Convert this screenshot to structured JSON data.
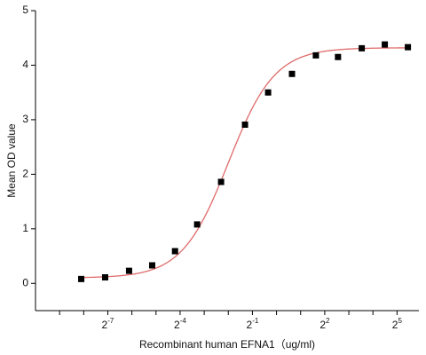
{
  "chart_data": {
    "type": "scatter",
    "x_label": "Recombinant human  EFNA1（ug/ml)",
    "y_label": "Mean OD value",
    "x_scale": "log2",
    "x": [
      0.00364,
      0.00724,
      0.0144,
      0.028,
      0.054,
      0.102,
      0.203,
      0.404,
      0.785,
      1.56,
      3.1,
      5.86,
      11.6,
      22.5,
      43.7
    ],
    "values": [
      0.08,
      0.11,
      0.23,
      0.33,
      0.59,
      1.08,
      1.86,
      2.91,
      3.5,
      3.84,
      4.18,
      4.15,
      4.31,
      4.38,
      4.33
    ],
    "color": "#000000",
    "fit": {
      "bottom": 0.1,
      "top": 4.32,
      "ec50": 0.25,
      "hill": 1.5,
      "color": "#e06a6a"
    },
    "xlim": [
      0.000977,
      60
    ],
    "ylim": [
      -0.5,
      5
    ],
    "xticks": [
      {
        "value": 0.0078125,
        "label": "2^-7"
      },
      {
        "value": 0.0625,
        "label": "2^-4"
      },
      {
        "value": 0.5,
        "label": "2^-1"
      },
      {
        "value": 4,
        "label": "2^2"
      },
      {
        "value": 32,
        "label": "2^5"
      }
    ],
    "xminorticks": [
      0.001953125,
      0.00390625,
      0.015625,
      0.03125,
      0.125,
      0.25,
      1,
      2,
      8,
      16
    ],
    "yticks": [
      0,
      1,
      2,
      3,
      4,
      5
    ],
    "grid": false
  }
}
